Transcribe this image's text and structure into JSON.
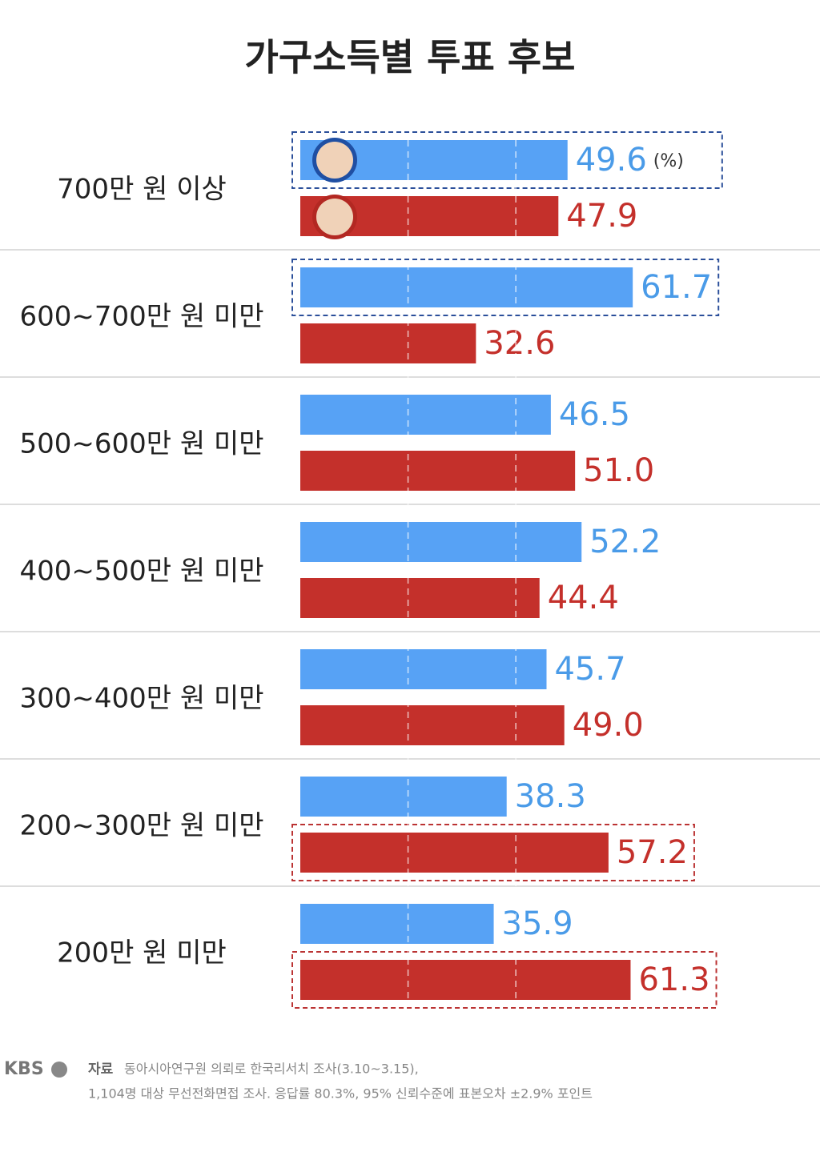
{
  "chart_data": {
    "type": "bar",
    "orientation": "horizontal",
    "title": "가구소득별 투표 후보",
    "categories": [
      "700만 원 이상",
      "600~700만 원 미만",
      "500~600만 원 미만",
      "400~500만 원 미만",
      "300~400만 원 미만",
      "200~300만 원 미만",
      "200만 원 미만"
    ],
    "series": [
      {
        "color": "#57a2f5",
        "label_color": "#4a9be8",
        "values": [
          49.6,
          61.7,
          46.5,
          52.2,
          45.7,
          38.3,
          35.9
        ],
        "value_labels": [
          "49.6",
          "61.7",
          "46.5",
          "52.2",
          "45.7",
          "38.3",
          "35.9"
        ],
        "highlight": [
          0,
          1
        ]
      },
      {
        "color": "#c4302b",
        "label_color": "#c4302b",
        "values": [
          47.9,
          32.6,
          51.0,
          44.4,
          49.0,
          57.2,
          61.3
        ],
        "value_labels": [
          "47.9",
          "32.6",
          "51.0",
          "44.4",
          "49.0",
          "57.2",
          "61.3"
        ],
        "highlight": [
          5,
          6
        ]
      }
    ],
    "unit_label": "(%)",
    "xlim": [
      0,
      70
    ],
    "gridlines": [
      20,
      40
    ]
  },
  "footer": {
    "logo": "KBS",
    "source_label": "자료",
    "source_lines": [
      "동아시아연구원 의뢰로 한국리서치 조사(3.10~3.15),",
      "1,104명 대상 무선전화면접 조사. 응답률 80.3%, 95% 신뢰수준에 표본오차 ±2.9% 포인트"
    ]
  }
}
